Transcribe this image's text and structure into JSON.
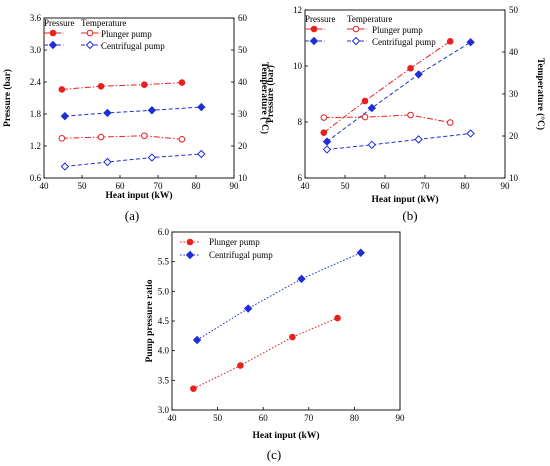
{
  "chart_data": [
    {
      "id": "a",
      "type": "line",
      "panel_label": "(a)",
      "xlabel": "Heat input (kW)",
      "ylabel": "Pressure (bar)",
      "y2label": "Temperature (°C)",
      "xlim": [
        40,
        90
      ],
      "xticks": [
        "40",
        "50",
        "60",
        "70",
        "80",
        "90"
      ],
      "ylim": [
        0.6,
        3.6
      ],
      "yticks": [
        "0.6",
        "1.2",
        "1.8",
        "2.4",
        "3.0",
        "3.6"
      ],
      "y2lim": [
        10,
        60
      ],
      "y2ticks": [
        "10",
        "20",
        "30",
        "40",
        "50",
        "60"
      ],
      "legend_headers": [
        "Pressure",
        "Temperature"
      ],
      "legend_labels": [
        "Plunger pump",
        "Centrifugal pump"
      ],
      "legend_position": "top-left",
      "series": [
        {
          "name": "Plunger pump",
          "quantity": "Pressure",
          "axis": "left",
          "color": "#e8201f",
          "marker": "circle",
          "filled": true,
          "dash": "dashdot",
          "x": [
            44.7,
            55.0,
            66.4,
            76.3
          ],
          "y": [
            2.26,
            2.32,
            2.35,
            2.39
          ]
        },
        {
          "name": "Centrifugal pump",
          "quantity": "Pressure",
          "axis": "left",
          "color": "#1f2fd6",
          "marker": "diamond",
          "filled": true,
          "dash": "dash",
          "x": [
            45.5,
            56.7,
            68.4,
            81.4
          ],
          "y": [
            1.76,
            1.82,
            1.87,
            1.93
          ]
        },
        {
          "name": "Plunger pump",
          "quantity": "Temperature",
          "axis": "right",
          "color": "#e8201f",
          "marker": "circle",
          "filled": false,
          "dash": "dashdot",
          "x": [
            44.7,
            55.0,
            66.4,
            76.3
          ],
          "y": [
            22.4,
            22.8,
            23.2,
            22.1
          ]
        },
        {
          "name": "Centrifugal pump",
          "quantity": "Temperature",
          "axis": "right",
          "color": "#1f2fd6",
          "marker": "diamond",
          "filled": false,
          "dash": "dash",
          "x": [
            45.5,
            56.7,
            68.4,
            81.4
          ],
          "y": [
            13.6,
            15.0,
            16.4,
            17.5
          ]
        }
      ]
    },
    {
      "id": "b",
      "type": "line",
      "panel_label": "(b)",
      "xlabel": "Heat input (kW)",
      "ylabel": "Pressure (bar)",
      "y2label": "Temperature (°C)",
      "xlim": [
        40,
        90
      ],
      "xticks": [
        "40",
        "50",
        "60",
        "70",
        "80",
        "90"
      ],
      "ylim": [
        6,
        12
      ],
      "yticks": [
        "6",
        "8",
        "10",
        "12"
      ],
      "y2lim": [
        10,
        50
      ],
      "y2ticks": [
        "10",
        "20",
        "30",
        "40",
        "50"
      ],
      "legend_headers": [
        "Pressure",
        "Temperature"
      ],
      "legend_labels": [
        "Plunger pump",
        "Centrifugal pump"
      ],
      "legend_position": "top-left",
      "series": [
        {
          "name": "Plunger pump",
          "quantity": "Pressure",
          "axis": "left",
          "color": "#e8201f",
          "marker": "circle",
          "filled": true,
          "dash": "dashdot",
          "x": [
            44.7,
            55.0,
            66.4,
            76.3
          ],
          "y": [
            7.62,
            8.75,
            9.92,
            10.88
          ]
        },
        {
          "name": "Centrifugal pump",
          "quantity": "Pressure",
          "axis": "left",
          "color": "#1f2fd6",
          "marker": "diamond",
          "filled": true,
          "dash": "dash",
          "x": [
            45.5,
            56.7,
            68.4,
            81.4
          ],
          "y": [
            7.3,
            8.5,
            9.7,
            10.85
          ]
        },
        {
          "name": "Plunger pump",
          "quantity": "Temperature",
          "axis": "right",
          "color": "#e8201f",
          "marker": "circle",
          "filled": false,
          "dash": "dashdot",
          "x": [
            44.7,
            55.0,
            66.4,
            76.3
          ],
          "y": [
            24.4,
            24.5,
            25.0,
            23.2
          ]
        },
        {
          "name": "Centrifugal pump",
          "quantity": "Temperature",
          "axis": "right",
          "color": "#1f2fd6",
          "marker": "diamond",
          "filled": false,
          "dash": "dash",
          "x": [
            45.5,
            56.7,
            68.4,
            81.4
          ],
          "y": [
            16.8,
            17.9,
            19.2,
            20.6
          ]
        }
      ]
    },
    {
      "id": "c",
      "type": "line",
      "panel_label": "(c)",
      "xlabel": "Heat input (kW)",
      "ylabel": "Pump pressure ratio",
      "xlim": [
        40,
        90
      ],
      "xticks": [
        "40",
        "50",
        "60",
        "70",
        "80",
        "90"
      ],
      "ylim": [
        3.0,
        6.0
      ],
      "yticks": [
        "3.0",
        "3.5",
        "4.0",
        "4.5",
        "5.0",
        "5.5",
        "6.0"
      ],
      "legend_labels": [
        "Plunger pump",
        "Centrifugal pump"
      ],
      "legend_position": "top-left",
      "series": [
        {
          "name": "Plunger pump",
          "axis": "left",
          "color": "#e8201f",
          "marker": "circle",
          "filled": true,
          "dash": "dot",
          "x": [
            44.7,
            55.0,
            66.4,
            76.3
          ],
          "y": [
            3.36,
            3.75,
            4.23,
            4.55
          ]
        },
        {
          "name": "Centrifugal pump",
          "axis": "left",
          "color": "#1f2fd6",
          "marker": "diamond",
          "filled": true,
          "dash": "dot",
          "x": [
            45.5,
            56.7,
            68.4,
            81.4
          ],
          "y": [
            4.18,
            4.71,
            5.21,
            5.65
          ]
        }
      ]
    }
  ]
}
